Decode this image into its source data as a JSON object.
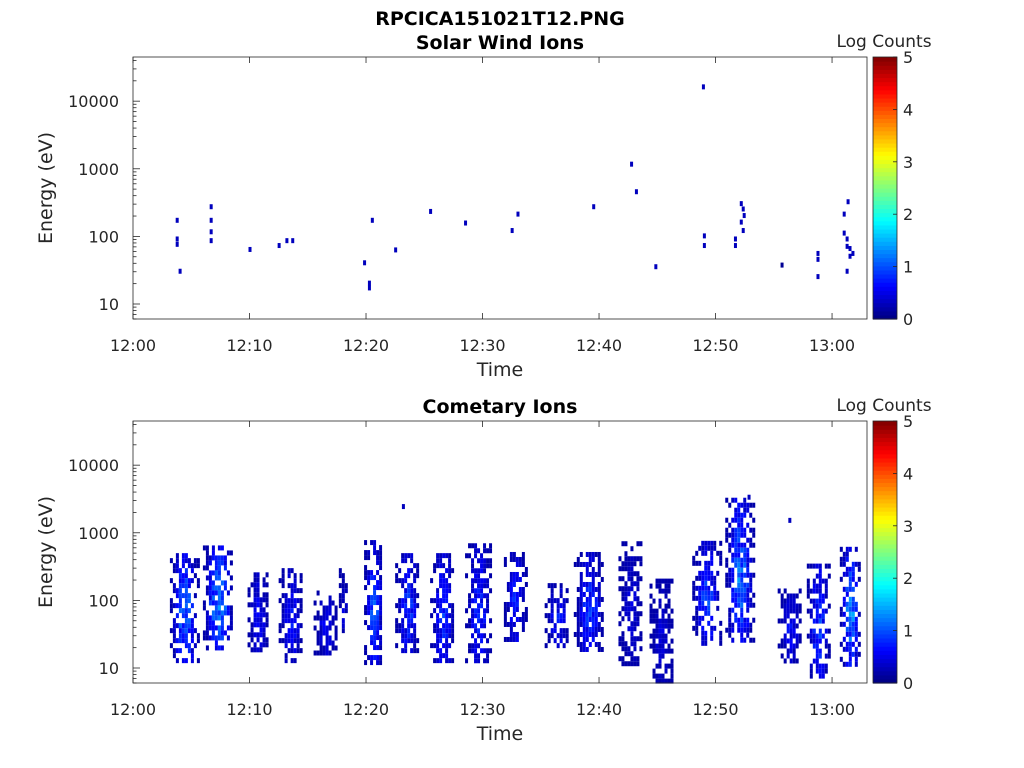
{
  "figure": {
    "title": "RPCICA151021T12.PNG"
  },
  "chart_data": [
    {
      "type": "heatmap",
      "title": "Solar Wind Ions",
      "xlabel": "Time",
      "ylabel": "Energy (eV)",
      "y_scale": "log",
      "xlim": [
        "12:00",
        "13:03"
      ],
      "ylim": [
        6,
        45000
      ],
      "xticks": [
        "12:00",
        "12:10",
        "12:20",
        "12:30",
        "12:40",
        "12:50",
        "13:00"
      ],
      "yticks": [
        "10",
        "100",
        "1000",
        "10000"
      ],
      "colorbar": {
        "label": "Log Counts",
        "range": [
          0,
          5
        ],
        "ticks": [
          "0",
          "1",
          "2",
          "3",
          "4",
          "5"
        ],
        "colormap": "jet"
      },
      "points": [
        {
          "t": "12:03:45",
          "e": 170,
          "c": 0.3
        },
        {
          "t": "12:03:45",
          "e": 90,
          "c": 0.3
        },
        {
          "t": "12:03:45",
          "e": 75,
          "c": 0.3
        },
        {
          "t": "12:04:00",
          "e": 30,
          "c": 0.3
        },
        {
          "t": "12:06:40",
          "e": 270,
          "c": 0.3
        },
        {
          "t": "12:06:40",
          "e": 170,
          "c": 0.3
        },
        {
          "t": "12:06:40",
          "e": 115,
          "c": 0.3
        },
        {
          "t": "12:06:40",
          "e": 85,
          "c": 0.3
        },
        {
          "t": "12:10:00",
          "e": 63,
          "c": 0.3
        },
        {
          "t": "12:12:30",
          "e": 72,
          "c": 0.3
        },
        {
          "t": "12:13:10",
          "e": 85,
          "c": 0.3
        },
        {
          "t": "12:13:40",
          "e": 85,
          "c": 0.3
        },
        {
          "t": "12:19:50",
          "e": 40,
          "c": 0.3
        },
        {
          "t": "12:20:15",
          "e": 20,
          "c": 0.3
        },
        {
          "t": "12:20:15",
          "e": 17,
          "c": 0.3
        },
        {
          "t": "12:20:30",
          "e": 170,
          "c": 0.3
        },
        {
          "t": "12:22:30",
          "e": 62,
          "c": 0.3
        },
        {
          "t": "12:25:30",
          "e": 230,
          "c": 0.3
        },
        {
          "t": "12:28:30",
          "e": 155,
          "c": 0.3
        },
        {
          "t": "12:32:30",
          "e": 120,
          "c": 0.3
        },
        {
          "t": "12:33:00",
          "e": 210,
          "c": 0.3
        },
        {
          "t": "12:39:30",
          "e": 270,
          "c": 0.3
        },
        {
          "t": "12:42:45",
          "e": 1150,
          "c": 0.3
        },
        {
          "t": "12:43:10",
          "e": 450,
          "c": 0.3
        },
        {
          "t": "12:44:50",
          "e": 35,
          "c": 0.3
        },
        {
          "t": "12:48:55",
          "e": 16000,
          "c": 0.3
        },
        {
          "t": "12:49:00",
          "e": 100,
          "c": 0.3
        },
        {
          "t": "12:49:00",
          "e": 72,
          "c": 0.3
        },
        {
          "t": "12:51:40",
          "e": 90,
          "c": 0.3
        },
        {
          "t": "12:51:40",
          "e": 72,
          "c": 0.3
        },
        {
          "t": "12:52:10",
          "e": 300,
          "c": 0.3
        },
        {
          "t": "12:52:20",
          "e": 250,
          "c": 0.3
        },
        {
          "t": "12:52:25",
          "e": 200,
          "c": 0.3
        },
        {
          "t": "12:52:10",
          "e": 160,
          "c": 0.3
        },
        {
          "t": "12:52:20",
          "e": 120,
          "c": 0.3
        },
        {
          "t": "12:55:40",
          "e": 37,
          "c": 0.1
        },
        {
          "t": "12:58:45",
          "e": 55,
          "c": 0.3
        },
        {
          "t": "12:58:45",
          "e": 45,
          "c": 0.3
        },
        {
          "t": "12:58:45",
          "e": 25,
          "c": 0.3
        },
        {
          "t": "13:01:20",
          "e": 320,
          "c": 0.3
        },
        {
          "t": "13:01:00",
          "e": 210,
          "c": 0.3
        },
        {
          "t": "13:01:00",
          "e": 110,
          "c": 0.3
        },
        {
          "t": "13:01:15",
          "e": 90,
          "c": 0.3
        },
        {
          "t": "13:01:15",
          "e": 70,
          "c": 0.3
        },
        {
          "t": "13:01:30",
          "e": 65,
          "c": 0.3
        },
        {
          "t": "13:01:30",
          "e": 50,
          "c": 0.3
        },
        {
          "t": "13:01:45",
          "e": 55,
          "c": 0.3
        },
        {
          "t": "13:01:15",
          "e": 30,
          "c": 0.3
        }
      ]
    },
    {
      "type": "heatmap",
      "title": "Cometary Ions",
      "xlabel": "Time",
      "ylabel": "Energy (eV)",
      "y_scale": "log",
      "xlim": [
        "12:00",
        "13:03"
      ],
      "ylim": [
        6,
        45000
      ],
      "xticks": [
        "12:00",
        "12:10",
        "12:20",
        "12:30",
        "12:40",
        "12:50",
        "13:00"
      ],
      "yticks": [
        "10",
        "100",
        "1000",
        "10000"
      ],
      "colorbar": {
        "label": "Log Counts",
        "range": [
          0,
          5
        ],
        "ticks": [
          "0",
          "1",
          "2",
          "3",
          "4",
          "5"
        ],
        "colormap": "jet"
      },
      "bursts": [
        {
          "t0": "12:03:10",
          "t1": "12:05:30",
          "emin": 12,
          "emax": 500,
          "cmax": 1.5
        },
        {
          "t0": "12:06:00",
          "t1": "12:08:30",
          "emin": 20,
          "emax": 650,
          "cmax": 1.6
        },
        {
          "t0": "12:09:50",
          "t1": "12:11:30",
          "emin": 18,
          "emax": 260,
          "cmax": 0.9
        },
        {
          "t0": "12:12:30",
          "t1": "12:14:30",
          "emin": 13,
          "emax": 300,
          "cmax": 0.9
        },
        {
          "t0": "12:15:30",
          "t1": "12:17:30",
          "emin": 18,
          "emax": 140,
          "cmax": 0.8
        },
        {
          "t0": "12:17:40",
          "t1": "12:18:20",
          "emin": 25,
          "emax": 300,
          "cmax": 0.6
        },
        {
          "t0": "12:19:50",
          "t1": "12:21:20",
          "emin": 13,
          "emax": 780,
          "cmax": 1.3
        },
        {
          "t0": "12:22:30",
          "t1": "12:24:30",
          "emin": 18,
          "emax": 500,
          "cmax": 1.1
        },
        {
          "t0": "12:25:30",
          "t1": "12:27:30",
          "emin": 13,
          "emax": 500,
          "cmax": 1.1
        },
        {
          "t0": "12:28:30",
          "t1": "12:30:40",
          "emin": 12,
          "emax": 700,
          "cmax": 1.0
        },
        {
          "t0": "12:31:50",
          "t1": "12:33:40",
          "emin": 25,
          "emax": 520,
          "cmax": 1.0
        },
        {
          "t0": "12:35:20",
          "t1": "12:37:20",
          "emin": 22,
          "emax": 180,
          "cmax": 0.9
        },
        {
          "t0": "12:37:50",
          "t1": "12:40:20",
          "emin": 18,
          "emax": 520,
          "cmax": 1.1
        },
        {
          "t0": "12:41:40",
          "t1": "12:43:40",
          "emin": 12,
          "emax": 750,
          "cmax": 0.6
        },
        {
          "t0": "12:44:20",
          "t1": "12:46:10",
          "emin": 6,
          "emax": 210,
          "cmax": 0.6
        },
        {
          "t0": "12:48:00",
          "t1": "12:50:20",
          "emin": 25,
          "emax": 760,
          "cmax": 1.2
        },
        {
          "t0": "12:50:50",
          "t1": "12:53:10",
          "emin": 25,
          "emax": 3300,
          "cmax": 1.5
        },
        {
          "t0": "12:55:20",
          "t1": "12:57:20",
          "emin": 13,
          "emax": 150,
          "cmax": 0.8
        },
        {
          "t0": "12:57:50",
          "t1": "12:59:40",
          "emin": 7,
          "emax": 350,
          "cmax": 1.2
        },
        {
          "t0": "13:00:40",
          "t1": "13:02:20",
          "emin": 12,
          "emax": 620,
          "cmax": 1.6
        }
      ],
      "points": [
        {
          "t": "12:23:10",
          "e": 2400,
          "c": 0.3
        },
        {
          "t": "12:56:20",
          "e": 1500,
          "c": 0.3
        },
        {
          "t": "12:52:50",
          "e": 3300,
          "c": 0.3
        }
      ]
    }
  ]
}
